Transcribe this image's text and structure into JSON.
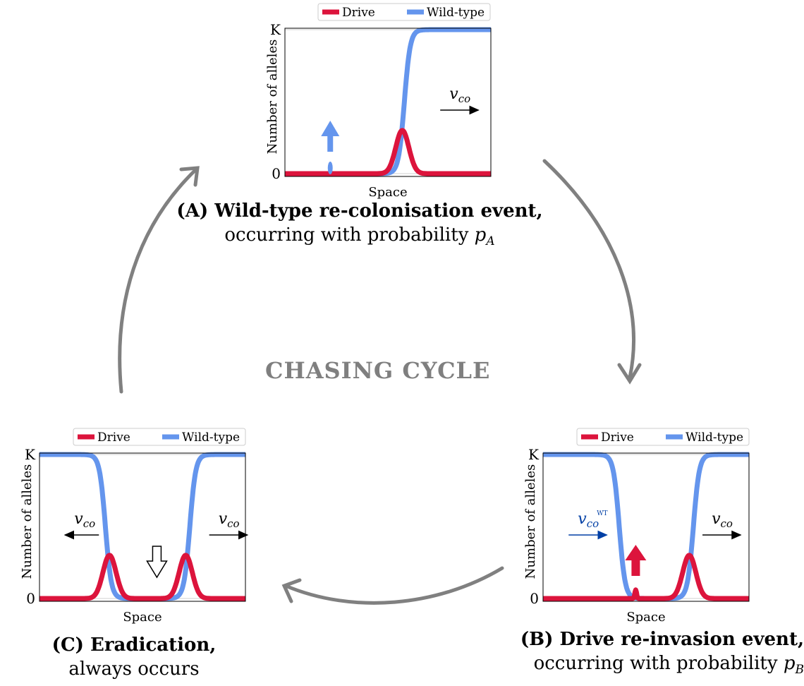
{
  "cycle_title": "CHASING CYCLE",
  "legend": {
    "drive": "Drive",
    "wildtype": "Wild-type"
  },
  "axes": {
    "xlabel": "Space",
    "ylabel": "Number of alleles",
    "ytick_top": "K",
    "ytick_bottom": "0"
  },
  "colors": {
    "drive": "#dc143c",
    "wildtype": "#6495ed",
    "arrow_gray": "#808080",
    "wt_velocity": "#003fa5"
  },
  "captions": {
    "A": {
      "bold": "(A) Wild-type re-colonisation event,",
      "rest": "occurring with probability",
      "prob": "p",
      "sub": "A"
    },
    "B": {
      "bold": "(B) Drive re-invasion event,",
      "rest": "occurring with probability",
      "prob": "p",
      "sub": "B"
    },
    "C": {
      "bold": "(C) Eradication,",
      "rest": "always occurs"
    }
  },
  "velocity": {
    "v": "v",
    "sub": "co",
    "sup_wt": "WT"
  },
  "panels": {
    "A": {
      "wildtype": [
        {
          "center": 0.58,
          "dir": "up"
        }
      ],
      "drive": [
        {
          "center": 0.57,
          "height": 0.3
        }
      ],
      "event_arrow": "wildtype-up",
      "velocities": [
        "right"
      ]
    },
    "B": {
      "wildtype": [
        {
          "center": 0.37,
          "dir": "down"
        },
        {
          "center": 0.73,
          "dir": "up"
        }
      ],
      "drive": [
        {
          "center": 0.71,
          "height": 0.3
        },
        {
          "center": 0.45,
          "height": 0.06
        }
      ],
      "event_arrow": "drive-up",
      "velocities": [
        "right-wt",
        "right"
      ]
    },
    "C": {
      "wildtype": [
        {
          "center": 0.32,
          "dir": "down"
        },
        {
          "center": 0.73,
          "dir": "up"
        }
      ],
      "drive": [
        {
          "center": 0.34,
          "height": 0.3
        },
        {
          "center": 0.71,
          "height": 0.3
        }
      ],
      "event_arrow": "hollow-down",
      "velocities": [
        "left",
        "right"
      ]
    }
  }
}
